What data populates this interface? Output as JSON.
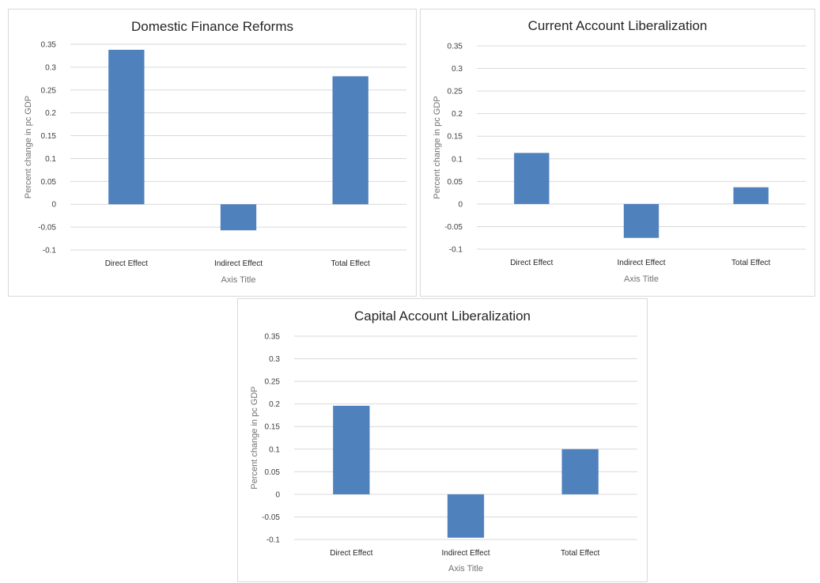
{
  "colors": {
    "bar": "#4f81bd",
    "grid": "#d9d9d9"
  },
  "chart_data": [
    {
      "type": "bar",
      "title": "Domestic Finance Reforms",
      "xlabel": "Axis Title",
      "ylabel": "Percent change in pc GDP",
      "categories": [
        "Direct Effect",
        "Indirect Effect",
        "Total Effect"
      ],
      "values": [
        0.338,
        -0.057,
        0.28
      ],
      "ylim": [
        -0.1,
        0.35
      ],
      "yticks": [
        "0.35",
        "0.3",
        "0.25",
        "0.2",
        "0.15",
        "0.1",
        "0.05",
        "0",
        "-0.05",
        "-0.1"
      ],
      "grid": true,
      "legend": "none"
    },
    {
      "type": "bar",
      "title": "Current Account Liberalization",
      "xlabel": "Axis Title",
      "ylabel": "Percent change in pc GDP",
      "categories": [
        "Direct Effect",
        "Indirect Effect",
        "Total Effect"
      ],
      "values": [
        0.113,
        -0.075,
        0.037
      ],
      "ylim": [
        -0.1,
        0.35
      ],
      "yticks": [
        "0.35",
        "0.3",
        "0.25",
        "0.2",
        "0.15",
        "0.1",
        "0.05",
        "0",
        "-0.05",
        "-0.1"
      ],
      "grid": true,
      "legend": "none"
    },
    {
      "type": "bar",
      "title": "Capital Account Liberalization",
      "xlabel": "Axis Title",
      "ylabel": "Percent change in pc GDP",
      "categories": [
        "Direct Effect",
        "Indirect Effect",
        "Total Effect"
      ],
      "values": [
        0.196,
        -0.096,
        0.1
      ],
      "ylim": [
        -0.1,
        0.35
      ],
      "yticks": [
        "0.35",
        "0.3",
        "0.25",
        "0.2",
        "0.15",
        "0.1",
        "0.05",
        "0",
        "-0.05",
        "-0.1"
      ],
      "grid": true,
      "legend": "none"
    }
  ]
}
